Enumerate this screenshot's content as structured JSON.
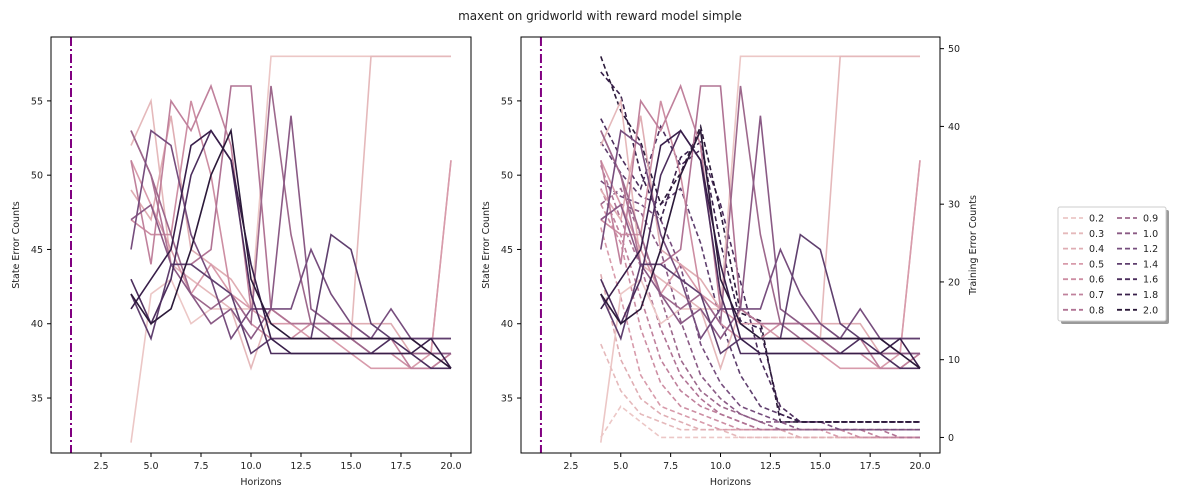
{
  "figure": {
    "title": "maxent on gridworld with reward model simple"
  },
  "legend": {
    "placement": "right",
    "entries": [
      "0.2",
      "0.3",
      "0.4",
      "0.5",
      "0.6",
      "0.7",
      "0.8",
      "0.9",
      "1.0",
      "1.2",
      "1.4",
      "1.6",
      "1.8",
      "2.0"
    ],
    "colors": [
      "#ecc7c6",
      "#e5b9bb",
      "#dfadb3",
      "#d89bab",
      "#cd8ea3",
      "#c0819c",
      "#b07394",
      "#9d688c",
      "#8a5a85",
      "#764d7d",
      "#5f3f6e",
      "#4c2e5d",
      "#381f4a",
      "#2b1939"
    ]
  },
  "chart_data": [
    {
      "type": "line",
      "panel": "left",
      "xlabel": "Horizons",
      "ylabel": "State Error Counts",
      "xlim": [
        0.0,
        21.0
      ],
      "ylim": [
        31.3,
        59.3
      ],
      "xticks": [
        2.5,
        5.0,
        7.5,
        10.0,
        12.5,
        15.0,
        17.5,
        20.0
      ],
      "yticks": [
        35,
        40,
        45,
        50,
        55
      ],
      "xtick_labels": [
        "2.5",
        "5.0",
        "7.5",
        "10.0",
        "12.5",
        "15.0",
        "17.5",
        "20.0"
      ],
      "ytick_labels": [
        "35",
        "40",
        "45",
        "50",
        "55"
      ],
      "vline": {
        "x": 1,
        "color": "#800080",
        "style": "dash-dot"
      },
      "x": [
        4,
        5,
        6,
        7,
        8,
        9,
        10,
        11,
        12,
        13,
        14,
        15,
        16,
        17,
        18,
        19,
        20
      ],
      "series": [
        {
          "name": "0.2",
          "values": [
            32,
            42,
            43,
            40,
            41,
            41,
            41,
            58,
            58,
            58,
            58,
            58,
            58,
            58,
            58,
            58,
            58
          ]
        },
        {
          "name": "0.3",
          "values": [
            52,
            55,
            44,
            43,
            42,
            41,
            37,
            41,
            40,
            40,
            40,
            39,
            58,
            58,
            58,
            58,
            58
          ]
        },
        {
          "name": "0.4",
          "values": [
            49,
            47,
            54,
            45,
            44,
            43,
            41,
            41,
            40,
            40,
            40,
            40,
            40,
            40,
            38,
            38,
            51
          ]
        },
        {
          "name": "0.5",
          "values": [
            51,
            48,
            45,
            42,
            44,
            42,
            41,
            40,
            40,
            39,
            39,
            38,
            37,
            37,
            37,
            38,
            51
          ]
        },
        {
          "name": "0.6",
          "values": [
            47,
            46,
            46,
            55,
            50,
            42,
            40,
            39,
            39,
            40,
            40,
            39,
            38,
            38,
            37,
            37,
            38
          ]
        },
        {
          "name": "0.7",
          "values": [
            51,
            44,
            55,
            53,
            56,
            52,
            41,
            41,
            40,
            40,
            40,
            40,
            39,
            39,
            37,
            37,
            38
          ]
        },
        {
          "name": "0.8",
          "values": [
            53,
            50,
            44,
            44,
            45,
            56,
            56,
            41,
            40,
            40,
            40,
            39,
            38,
            38,
            38,
            38,
            38
          ]
        },
        {
          "name": "0.9",
          "values": [
            53,
            50,
            46,
            42,
            41,
            42,
            40,
            56,
            46,
            40,
            39,
            39,
            38,
            38,
            38,
            38,
            38
          ]
        },
        {
          "name": "1.0",
          "values": [
            47,
            48,
            44,
            42,
            40,
            41,
            39,
            41,
            54,
            41,
            40,
            39,
            39,
            39,
            39,
            38,
            38
          ]
        },
        {
          "name": "1.2",
          "values": [
            45,
            53,
            52,
            46,
            43,
            39,
            41,
            41,
            41,
            45,
            42,
            40,
            39,
            41,
            39,
            39,
            39
          ]
        },
        {
          "name": "1.4",
          "values": [
            42,
            39,
            44,
            44,
            43,
            42,
            38,
            39,
            39,
            39,
            46,
            45,
            40,
            39,
            39,
            39,
            39
          ]
        },
        {
          "name": "1.6",
          "values": [
            43,
            40,
            43,
            50,
            53,
            51,
            42,
            38,
            38,
            38,
            38,
            38,
            38,
            39,
            38,
            37,
            37
          ]
        },
        {
          "name": "1.8",
          "values": [
            41,
            43,
            45,
            52,
            53,
            51,
            44,
            39,
            38,
            38,
            38,
            38,
            38,
            38,
            38,
            39,
            37
          ]
        },
        {
          "name": "2.0",
          "values": [
            42,
            40,
            41,
            45,
            50,
            53,
            43,
            40,
            39,
            39,
            39,
            39,
            39,
            39,
            39,
            38,
            37
          ]
        }
      ]
    },
    {
      "type": "line",
      "panel": "right",
      "xlabel": "Horizons",
      "ylabel": "State Error Counts",
      "y2label": "Training Error Counts",
      "xlim": [
        0.0,
        21.0
      ],
      "ylim": [
        31.3,
        59.3
      ],
      "y2lim": [
        -2.0,
        51.5
      ],
      "xticks": [
        2.5,
        5.0,
        7.5,
        10.0,
        12.5,
        15.0,
        17.5,
        20.0
      ],
      "yticks": [
        35,
        40,
        45,
        50,
        55
      ],
      "y2ticks": [
        0,
        10,
        20,
        30,
        40,
        50
      ],
      "xtick_labels": [
        "2.5",
        "5.0",
        "7.5",
        "10.0",
        "12.5",
        "15.0",
        "17.5",
        "20.0"
      ],
      "ytick_labels": [
        "35",
        "40",
        "45",
        "50",
        "55"
      ],
      "y2tick_labels": [
        "0",
        "10",
        "20",
        "30",
        "40",
        "50"
      ],
      "vline": {
        "x": 1,
        "color": "#800080",
        "style": "dash-dot"
      },
      "x": [
        4,
        5,
        6,
        7,
        8,
        9,
        10,
        11,
        12,
        13,
        14,
        15,
        16,
        17,
        18,
        19,
        20
      ],
      "series": [
        {
          "name": "0.2",
          "values": [
            32,
            42,
            43,
            40,
            41,
            41,
            41,
            58,
            58,
            58,
            58,
            58,
            58,
            58,
            58,
            58,
            58
          ]
        },
        {
          "name": "0.3",
          "values": [
            52,
            55,
            44,
            43,
            42,
            41,
            37,
            41,
            40,
            40,
            40,
            39,
            58,
            58,
            58,
            58,
            58
          ]
        },
        {
          "name": "0.4",
          "values": [
            49,
            47,
            54,
            45,
            44,
            43,
            41,
            41,
            40,
            40,
            40,
            40,
            40,
            40,
            38,
            38,
            51
          ]
        },
        {
          "name": "0.5",
          "values": [
            51,
            48,
            45,
            42,
            44,
            42,
            41,
            40,
            40,
            39,
            39,
            38,
            37,
            37,
            37,
            38,
            51
          ]
        },
        {
          "name": "0.6",
          "values": [
            47,
            46,
            46,
            55,
            50,
            42,
            40,
            39,
            39,
            40,
            40,
            39,
            38,
            38,
            37,
            37,
            38
          ]
        },
        {
          "name": "0.7",
          "values": [
            51,
            44,
            55,
            53,
            56,
            52,
            41,
            41,
            40,
            40,
            40,
            40,
            39,
            39,
            37,
            37,
            38
          ]
        },
        {
          "name": "0.8",
          "values": [
            53,
            50,
            44,
            44,
            45,
            56,
            56,
            41,
            40,
            40,
            40,
            39,
            38,
            38,
            38,
            38,
            38
          ]
        },
        {
          "name": "0.9",
          "values": [
            53,
            50,
            46,
            42,
            41,
            42,
            40,
            56,
            46,
            40,
            39,
            39,
            38,
            38,
            38,
            38,
            38
          ]
        },
        {
          "name": "1.0",
          "values": [
            47,
            48,
            44,
            42,
            40,
            41,
            39,
            41,
            54,
            41,
            40,
            39,
            39,
            39,
            39,
            38,
            38
          ]
        },
        {
          "name": "1.2",
          "values": [
            45,
            53,
            52,
            46,
            43,
            39,
            41,
            41,
            41,
            45,
            42,
            40,
            39,
            41,
            39,
            39,
            39
          ]
        },
        {
          "name": "1.4",
          "values": [
            42,
            39,
            44,
            44,
            43,
            42,
            38,
            39,
            39,
            39,
            46,
            45,
            40,
            39,
            39,
            39,
            39
          ]
        },
        {
          "name": "1.6",
          "values": [
            43,
            40,
            43,
            50,
            53,
            51,
            42,
            38,
            38,
            38,
            38,
            38,
            38,
            39,
            38,
            37,
            37
          ]
        },
        {
          "name": "1.8",
          "values": [
            41,
            43,
            45,
            52,
            53,
            51,
            44,
            39,
            38,
            38,
            38,
            38,
            38,
            38,
            38,
            39,
            37
          ]
        },
        {
          "name": "2.0",
          "values": [
            42,
            40,
            41,
            45,
            50,
            53,
            43,
            40,
            39,
            39,
            39,
            39,
            39,
            39,
            39,
            38,
            37
          ]
        }
      ],
      "training_series": [
        {
          "name": "0.2",
          "values": [
            0,
            4,
            2,
            0,
            0,
            0,
            0,
            0,
            0,
            0,
            0,
            0,
            0,
            0,
            0,
            0,
            0
          ]
        },
        {
          "name": "0.3",
          "values": [
            12,
            6,
            3,
            2,
            1,
            1,
            1,
            0,
            0,
            0,
            0,
            0,
            0,
            0,
            0,
            0,
            0
          ]
        },
        {
          "name": "0.4",
          "values": [
            21,
            10,
            5,
            3,
            2,
            1,
            1,
            1,
            1,
            1,
            0,
            0,
            0,
            0,
            0,
            0,
            0
          ]
        },
        {
          "name": "0.5",
          "values": [
            27,
            18,
            8,
            4,
            3,
            2,
            1,
            1,
            1,
            1,
            1,
            1,
            0,
            0,
            0,
            0,
            0
          ]
        },
        {
          "name": "0.6",
          "values": [
            30,
            25,
            14,
            7,
            4,
            3,
            2,
            1,
            1,
            1,
            1,
            1,
            1,
            0,
            0,
            0,
            0
          ]
        },
        {
          "name": "0.7",
          "values": [
            32,
            26,
            18,
            10,
            6,
            4,
            3,
            2,
            1,
            1,
            1,
            1,
            1,
            1,
            0,
            0,
            0
          ]
        },
        {
          "name": "0.8",
          "values": [
            35,
            28,
            22,
            14,
            8,
            5,
            3,
            2,
            1,
            1,
            1,
            1,
            1,
            1,
            1,
            0,
            0
          ]
        },
        {
          "name": "0.9",
          "values": [
            30,
            32,
            26,
            18,
            10,
            6,
            4,
            3,
            2,
            1,
            1,
            1,
            1,
            1,
            1,
            1,
            1
          ]
        },
        {
          "name": "1.0",
          "values": [
            28,
            30,
            29,
            24,
            15,
            8,
            5,
            3,
            2,
            2,
            1,
            1,
            1,
            1,
            1,
            1,
            1
          ]
        },
        {
          "name": "1.2",
          "values": [
            33,
            31,
            30,
            28,
            22,
            12,
            7,
            4,
            3,
            2,
            2,
            2,
            1,
            1,
            1,
            1,
            1
          ]
        },
        {
          "name": "1.4",
          "values": [
            38,
            34,
            31,
            30,
            32,
            25,
            15,
            8,
            4,
            3,
            2,
            2,
            2,
            2,
            2,
            2,
            2
          ]
        },
        {
          "name": "1.6",
          "values": [
            41,
            36,
            32,
            40,
            35,
            37,
            30,
            20,
            10,
            4,
            2,
            2,
            2,
            2,
            2,
            2,
            2
          ]
        },
        {
          "name": "1.8",
          "values": [
            47,
            44,
            34,
            28,
            36,
            38,
            25,
            15,
            14,
            3,
            2,
            2,
            2,
            2,
            2,
            2,
            2
          ]
        },
        {
          "name": "2.0",
          "values": [
            49,
            42,
            38,
            30,
            34,
            40,
            29,
            16,
            15,
            2,
            2,
            2,
            2,
            2,
            2,
            2,
            2
          ]
        }
      ]
    }
  ]
}
